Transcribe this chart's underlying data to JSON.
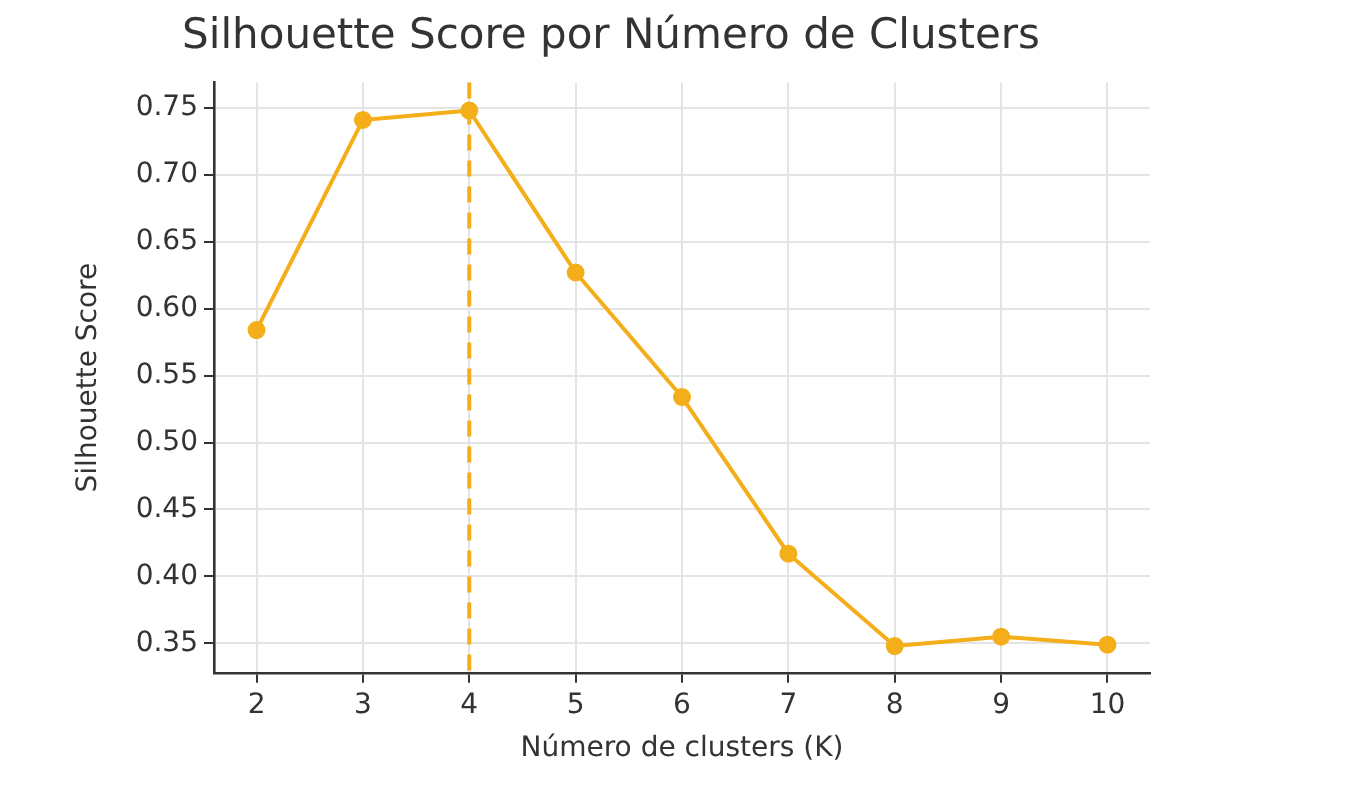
{
  "chart_data": {
    "type": "line",
    "title": "Silhouette Score por Número de Clusters",
    "xlabel": "Número de clusters (K)",
    "ylabel": "Silhouette Score",
    "x": [
      2,
      3,
      4,
      5,
      6,
      7,
      8,
      9,
      10
    ],
    "series": [
      {
        "color": "#f4ae1a",
        "values": [
          0.584,
          0.741,
          0.748,
          0.627,
          0.534,
          0.417,
          0.348,
          0.355,
          0.349
        ]
      }
    ],
    "xlim": [
      1.6,
      10.4
    ],
    "xticks": [
      2,
      3,
      4,
      5,
      6,
      7,
      8,
      9,
      10
    ],
    "ylim": [
      0.328,
      0.769
    ],
    "yticks": [
      0.35,
      {
        "value": 0.4,
        "label": "0.40"
      },
      0.45,
      {
        "value": 0.5,
        "label": "0.50"
      },
      0.55,
      {
        "value": 0.6,
        "label": "0.60"
      },
      0.65,
      {
        "value": 0.7,
        "label": "0.70"
      },
      0.75
    ],
    "ref_lines": [
      {
        "axis": "x",
        "value": 4,
        "color": "#f4ae1a",
        "line_style": "dashed"
      }
    ],
    "grid": true,
    "legend": false,
    "marker": "circle",
    "line_style": "solid"
  }
}
